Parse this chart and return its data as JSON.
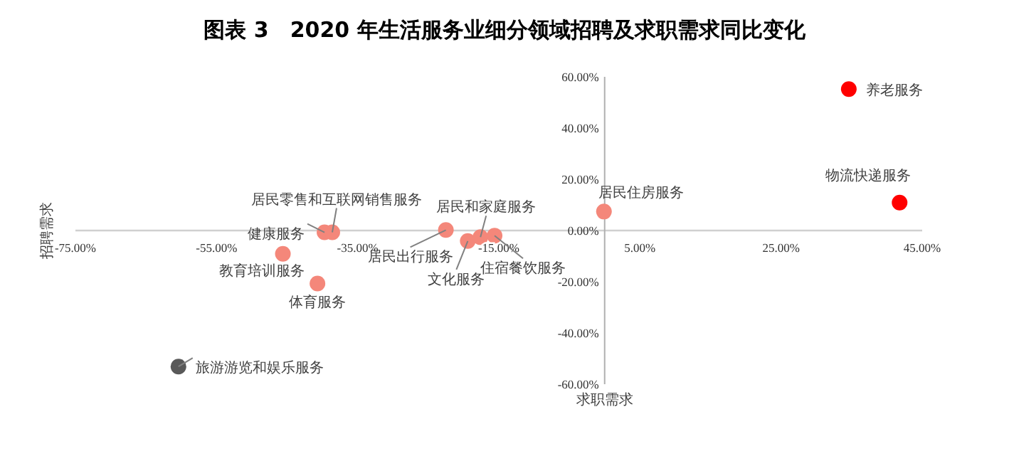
{
  "chart_data": {
    "type": "scatter",
    "title": "图表 3　2020 年生活服务业细分领域招聘及求职需求同比变化",
    "xlabel": "求职需求",
    "ylabel": "招聘需求",
    "x": [
      34.6,
      41.8,
      -0.1,
      -22.5,
      -19.4,
      -17.6,
      -15.6,
      -39.7,
      -38.6,
      -45.6,
      -40.7,
      -60.4
    ],
    "values": [
      55.2,
      10.9,
      7.4,
      0.2,
      -4.1,
      -2.6,
      -2.0,
      -0.7,
      -0.7,
      -9.1,
      -20.7,
      -53.1
    ],
    "colors": [
      "#ff0000",
      "#ff0000",
      "#f4877a",
      "#f4877a",
      "#f4877a",
      "#f4877a",
      "#f4877a",
      "#f4877a",
      "#f4877a",
      "#f4877a",
      "#f4877a",
      "#595959"
    ],
    "marker": "circle",
    "grid": false,
    "xlim": [
      -75,
      45
    ],
    "xticks": [
      {
        "value": -75,
        "label": "-75.00%"
      },
      {
        "value": -55,
        "label": "-55.00%"
      },
      {
        "value": -35,
        "label": "-35.00%"
      },
      {
        "value": -15,
        "label": "-15.00%"
      },
      {
        "value": 5,
        "label": "5.00%"
      },
      {
        "value": 25,
        "label": "25.00%"
      },
      {
        "value": 45,
        "label": "45.00%"
      }
    ],
    "ylim": [
      -60,
      60
    ],
    "yticks": [
      {
        "value": -60,
        "label": "-60.00%"
      },
      {
        "value": -40,
        "label": "-40.00%"
      },
      {
        "value": -20,
        "label": "-20.00%"
      },
      {
        "value": 0,
        "label": "0.00%"
      },
      {
        "value": 20,
        "label": "20.00%"
      },
      {
        "value": 40,
        "label": "40.00%"
      },
      {
        "value": 60,
        "label": "60.00%"
      }
    ],
    "annotations": [
      {
        "text": "养老服务",
        "x": 34.6,
        "y": 55.2
      },
      {
        "text": "物流快递服务",
        "x": 41.8,
        "y": 10.9
      },
      {
        "text": "居民住房服务",
        "x": -0.1,
        "y": 7.4
      },
      {
        "text": "居民出行服务",
        "x": -22.5,
        "y": 0.2
      },
      {
        "text": "文化服务",
        "x": -19.4,
        "y": -4.1
      },
      {
        "text": "居民和家庭服务",
        "x": -17.6,
        "y": -2.6
      },
      {
        "text": "住宿餐饮服务",
        "x": -15.6,
        "y": -2.0
      },
      {
        "text": "健康服务",
        "x": -39.7,
        "y": -0.7
      },
      {
        "text": "居民零售和互联网销售服务",
        "x": -38.6,
        "y": -0.7
      },
      {
        "text": "教育培训服务",
        "x": -45.6,
        "y": -9.1
      },
      {
        "text": "体育服务",
        "x": -40.7,
        "y": -20.7
      },
      {
        "text": "旅游游览和娱乐服务",
        "x": -60.4,
        "y": -53.1
      }
    ]
  }
}
